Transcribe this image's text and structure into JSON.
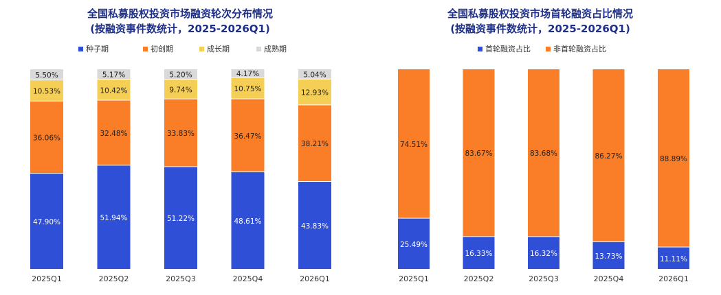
{
  "colors": {
    "seed": "#2f4fd6",
    "early": "#f97e27",
    "growth": "#f5cf55",
    "mature": "#d9d9d9",
    "first_round": "#2f4fd6",
    "non_first_round": "#f97e27",
    "title": "#1d2f8a",
    "label_dark": "#222222",
    "label_light": "#ffffff"
  },
  "chart_data": [
    {
      "type": "bar",
      "stacked": true,
      "title": "全国私募股权投资市场融资轮次分布情况",
      "subtitle": "(按融资事件数统计，2025-2026Q1)",
      "categories": [
        "2025Q1",
        "2025Q2",
        "2025Q3",
        "2025Q4",
        "2026Q1"
      ],
      "series": [
        {
          "name": "种子期",
          "values": [
            47.9,
            51.94,
            51.22,
            48.61,
            43.83
          ],
          "labels": [
            "47.90%",
            "51.94%",
            "51.22%",
            "48.61%",
            "43.83%"
          ]
        },
        {
          "name": "初创期",
          "values": [
            36.06,
            32.48,
            33.83,
            36.47,
            38.21
          ],
          "labels": [
            "36.06%",
            "32.48%",
            "33.83%",
            "36.47%",
            "38.21%"
          ]
        },
        {
          "name": "成长期",
          "values": [
            10.53,
            10.42,
            9.74,
            10.75,
            12.93
          ],
          "labels": [
            "10.53%",
            "10.42%",
            "9.74%",
            "10.75%",
            "12.93%"
          ]
        },
        {
          "name": "成熟期",
          "values": [
            5.5,
            5.17,
            5.2,
            4.17,
            5.04
          ],
          "labels": [
            "5.50%",
            "5.17%",
            "5.20%",
            "4.17%",
            "5.04%"
          ]
        }
      ],
      "ylim": [
        0,
        100
      ],
      "legend": "top"
    },
    {
      "type": "bar",
      "stacked": true,
      "title": "全国私募股权投资市场首轮融资占比情况",
      "subtitle": "(按融资事件数统计，2025-2026Q1)",
      "categories": [
        "2025Q1",
        "2025Q2",
        "2025Q3",
        "2025Q4",
        "2026Q1"
      ],
      "series": [
        {
          "name": "首轮融资占比",
          "values": [
            25.49,
            16.33,
            16.32,
            13.73,
            11.11
          ],
          "labels": [
            "25.49%",
            "16.33%",
            "16.32%",
            "13.73%",
            "11.11%"
          ]
        },
        {
          "name": "非首轮融资占比",
          "values": [
            74.51,
            83.67,
            83.68,
            86.27,
            88.89
          ],
          "labels": [
            "74.51%",
            "83.67%",
            "83.68%",
            "86.27%",
            "88.89%"
          ]
        }
      ],
      "ylim": [
        0,
        100
      ],
      "legend": "top"
    }
  ]
}
